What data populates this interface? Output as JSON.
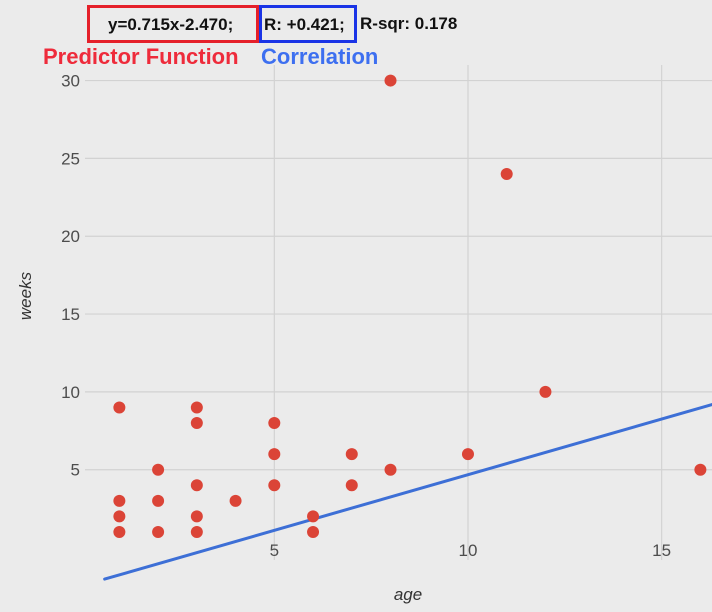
{
  "annotations": {
    "equation": "y=0.715x-2.470;",
    "correlation": "R: +0.421;",
    "rsquared": "R-sqr: 0.178",
    "predictor_label": "Predictor Function",
    "correlation_label": "Correlation",
    "predictor_color": "#ee2b3b",
    "correlation_color": "#3d6ff0"
  },
  "chart_data": {
    "type": "scatter",
    "title": "",
    "xlabel": "age",
    "ylabel": "weeks",
    "xlim": [
      0.5,
      16.3
    ],
    "ylim": [
      -0.8,
      31
    ],
    "xticks": [
      5,
      10,
      15
    ],
    "yticks": [
      5,
      10,
      15,
      20,
      25,
      30
    ],
    "grid": true,
    "point_color": "#db4437",
    "line_color": "#3d6fd6",
    "trendline": {
      "slope": 0.715,
      "intercept": -2.47
    },
    "points": [
      {
        "x": 1,
        "y": 9
      },
      {
        "x": 1,
        "y": 3
      },
      {
        "x": 1,
        "y": 2
      },
      {
        "x": 1,
        "y": 1
      },
      {
        "x": 2,
        "y": 5
      },
      {
        "x": 2,
        "y": 3
      },
      {
        "x": 2,
        "y": 1
      },
      {
        "x": 3,
        "y": 9
      },
      {
        "x": 3,
        "y": 8
      },
      {
        "x": 3,
        "y": 4
      },
      {
        "x": 3,
        "y": 2
      },
      {
        "x": 3,
        "y": 1
      },
      {
        "x": 4,
        "y": 3
      },
      {
        "x": 5,
        "y": 8
      },
      {
        "x": 5,
        "y": 6
      },
      {
        "x": 5,
        "y": 4
      },
      {
        "x": 6,
        "y": 2
      },
      {
        "x": 6,
        "y": 1
      },
      {
        "x": 7,
        "y": 6
      },
      {
        "x": 7,
        "y": 4
      },
      {
        "x": 8,
        "y": 30
      },
      {
        "x": 8,
        "y": 5
      },
      {
        "x": 10,
        "y": 6
      },
      {
        "x": 11,
        "y": 24
      },
      {
        "x": 12,
        "y": 10
      },
      {
        "x": 16,
        "y": 5
      }
    ]
  }
}
